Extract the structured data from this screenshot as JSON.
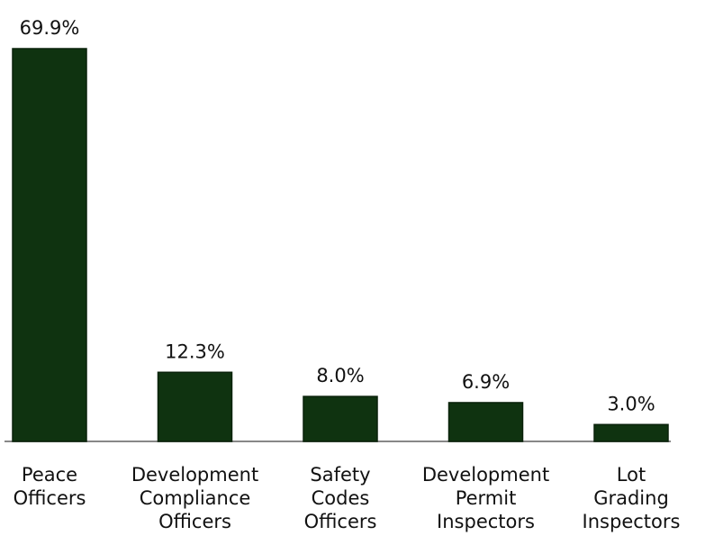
{
  "chart_data": {
    "type": "bar",
    "categories": [
      "Peace Officers",
      "Development Compliance Officers",
      "Safety Codes Officers",
      "Development Permit Inspectors",
      "Lot Grading Inspectors"
    ],
    "values": [
      69.9,
      12.3,
      8.0,
      6.9,
      3.0
    ],
    "value_labels": [
      "69.9%",
      "12.3%",
      "8.0%",
      "6.9%",
      "3.0%"
    ],
    "color": "#0f3310"
  }
}
